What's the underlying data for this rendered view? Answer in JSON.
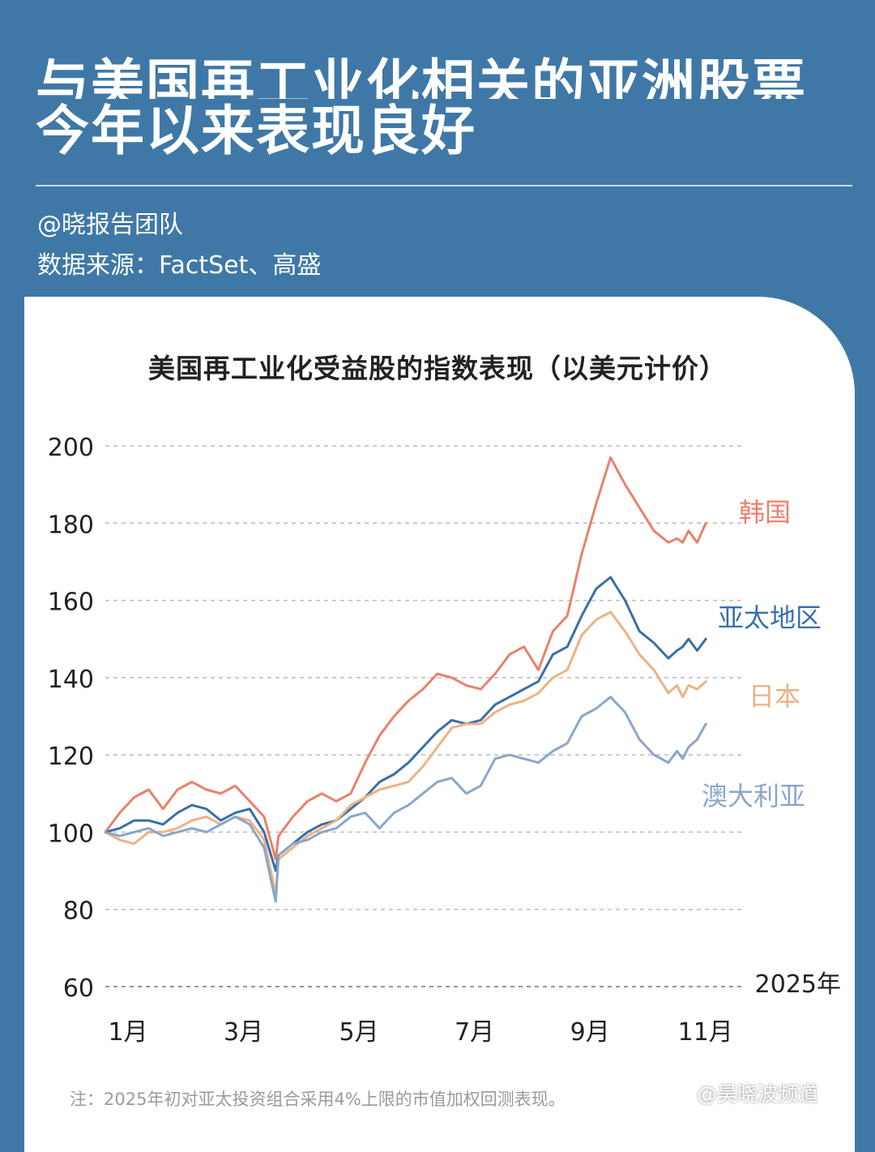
{
  "header": {
    "title_line1": "与美国再工业化相关的亚洲股票",
    "title_line2": "今年以来表现良好",
    "author": "@晓报告团队",
    "source": "数据来源：FactSet、高盛"
  },
  "chart_data": {
    "type": "line",
    "title": "美国再工业化受益股的指数表现（以美元计价）",
    "xlabel": "",
    "ylabel": "",
    "x_ticks": [
      1,
      3,
      5,
      7,
      9,
      11
    ],
    "x_tick_labels": [
      "1月",
      "3月",
      "5月",
      "7月",
      "9月",
      "11月"
    ],
    "year_label": "2025年",
    "xlim": [
      1,
      12
    ],
    "ylim": [
      60,
      200
    ],
    "y_ticks": [
      60,
      80,
      100,
      120,
      140,
      160,
      180,
      200
    ],
    "grid": true,
    "series": [
      {
        "name": "韩国",
        "color": "#e8826b",
        "x": [
          1.0,
          1.25,
          1.5,
          1.75,
          2.0,
          2.25,
          2.5,
          2.75,
          3.0,
          3.25,
          3.5,
          3.75,
          3.95,
          4.0,
          4.25,
          4.5,
          4.75,
          5.0,
          5.25,
          5.5,
          5.75,
          6.0,
          6.25,
          6.5,
          6.75,
          7.0,
          7.25,
          7.5,
          7.75,
          8.0,
          8.25,
          8.5,
          8.75,
          9.0,
          9.25,
          9.5,
          9.75,
          10.0,
          10.25,
          10.5,
          10.75,
          10.9,
          11.0,
          11.1,
          11.25,
          11.4
        ],
        "values": [
          100,
          105,
          109,
          111,
          106,
          111,
          113,
          111,
          110,
          112,
          108,
          104,
          93,
          99,
          104,
          108,
          110,
          108,
          110,
          118,
          125,
          130,
          134,
          137,
          141,
          140,
          138,
          137,
          141,
          146,
          148,
          142,
          152,
          156,
          172,
          185,
          197,
          190,
          184,
          178,
          175,
          176,
          175,
          178,
          175,
          180
        ]
      },
      {
        "name": "亚太地区",
        "color": "#3a6fa8",
        "x": [
          1.0,
          1.25,
          1.5,
          1.75,
          2.0,
          2.25,
          2.5,
          2.75,
          3.0,
          3.25,
          3.5,
          3.75,
          3.95,
          4.0,
          4.25,
          4.5,
          4.75,
          5.0,
          5.25,
          5.5,
          5.75,
          6.0,
          6.25,
          6.5,
          6.75,
          7.0,
          7.25,
          7.5,
          7.75,
          8.0,
          8.25,
          8.5,
          8.75,
          9.0,
          9.25,
          9.5,
          9.75,
          10.0,
          10.25,
          10.5,
          10.75,
          10.9,
          11.0,
          11.1,
          11.25,
          11.4
        ],
        "values": [
          100,
          101,
          103,
          103,
          102,
          105,
          107,
          106,
          103,
          105,
          106,
          100,
          90,
          94,
          97,
          100,
          102,
          103,
          106,
          109,
          113,
          115,
          118,
          122,
          126,
          129,
          128,
          129,
          133,
          135,
          137,
          139,
          146,
          148,
          156,
          163,
          166,
          160,
          152,
          149,
          145,
          147,
          148,
          150,
          147,
          150
        ]
      },
      {
        "name": "日本",
        "color": "#f0b183",
        "x": [
          1.0,
          1.25,
          1.5,
          1.75,
          2.0,
          2.25,
          2.5,
          2.75,
          3.0,
          3.25,
          3.5,
          3.75,
          3.95,
          4.0,
          4.25,
          4.5,
          4.75,
          5.0,
          5.25,
          5.5,
          5.75,
          6.0,
          6.25,
          6.5,
          6.75,
          7.0,
          7.25,
          7.5,
          7.75,
          8.0,
          8.25,
          8.5,
          8.75,
          9.0,
          9.25,
          9.5,
          9.75,
          10.0,
          10.25,
          10.5,
          10.75,
          10.9,
          11.0,
          11.1,
          11.25,
          11.4
        ],
        "values": [
          100,
          98,
          97,
          100,
          100,
          101,
          103,
          104,
          102,
          104,
          103,
          98,
          84,
          93,
          96,
          99,
          101,
          103,
          107,
          109,
          111,
          112,
          113,
          117,
          122,
          127,
          128,
          128,
          131,
          133,
          134,
          136,
          140,
          142,
          151,
          155,
          157,
          152,
          146,
          142,
          136,
          138,
          135,
          138,
          137,
          139
        ]
      },
      {
        "name": "澳大利亚",
        "color": "#8aa6cb",
        "x": [
          1.0,
          1.25,
          1.5,
          1.75,
          2.0,
          2.25,
          2.5,
          2.75,
          3.0,
          3.25,
          3.5,
          3.75,
          3.95,
          4.0,
          4.25,
          4.5,
          4.75,
          5.0,
          5.25,
          5.5,
          5.75,
          6.0,
          6.25,
          6.5,
          6.75,
          7.0,
          7.25,
          7.5,
          7.75,
          8.0,
          8.25,
          8.5,
          8.75,
          9.0,
          9.25,
          9.5,
          9.75,
          10.0,
          10.25,
          10.5,
          10.75,
          10.9,
          11.0,
          11.1,
          11.25,
          11.4
        ],
        "values": [
          100,
          99,
          100,
          101,
          99,
          100,
          101,
          100,
          102,
          104,
          102,
          96,
          82,
          94,
          97,
          98,
          100,
          101,
          104,
          105,
          101,
          105,
          107,
          110,
          113,
          114,
          110,
          112,
          119,
          120,
          119,
          118,
          121,
          123,
          130,
          132,
          135,
          131,
          124,
          120,
          118,
          121,
          119,
          122,
          124,
          128
        ]
      }
    ]
  },
  "footnote": "注：2025年初对亚太投资组合采用4%上限的市值加权回测表现。",
  "watermark": "@昊晓波频道"
}
